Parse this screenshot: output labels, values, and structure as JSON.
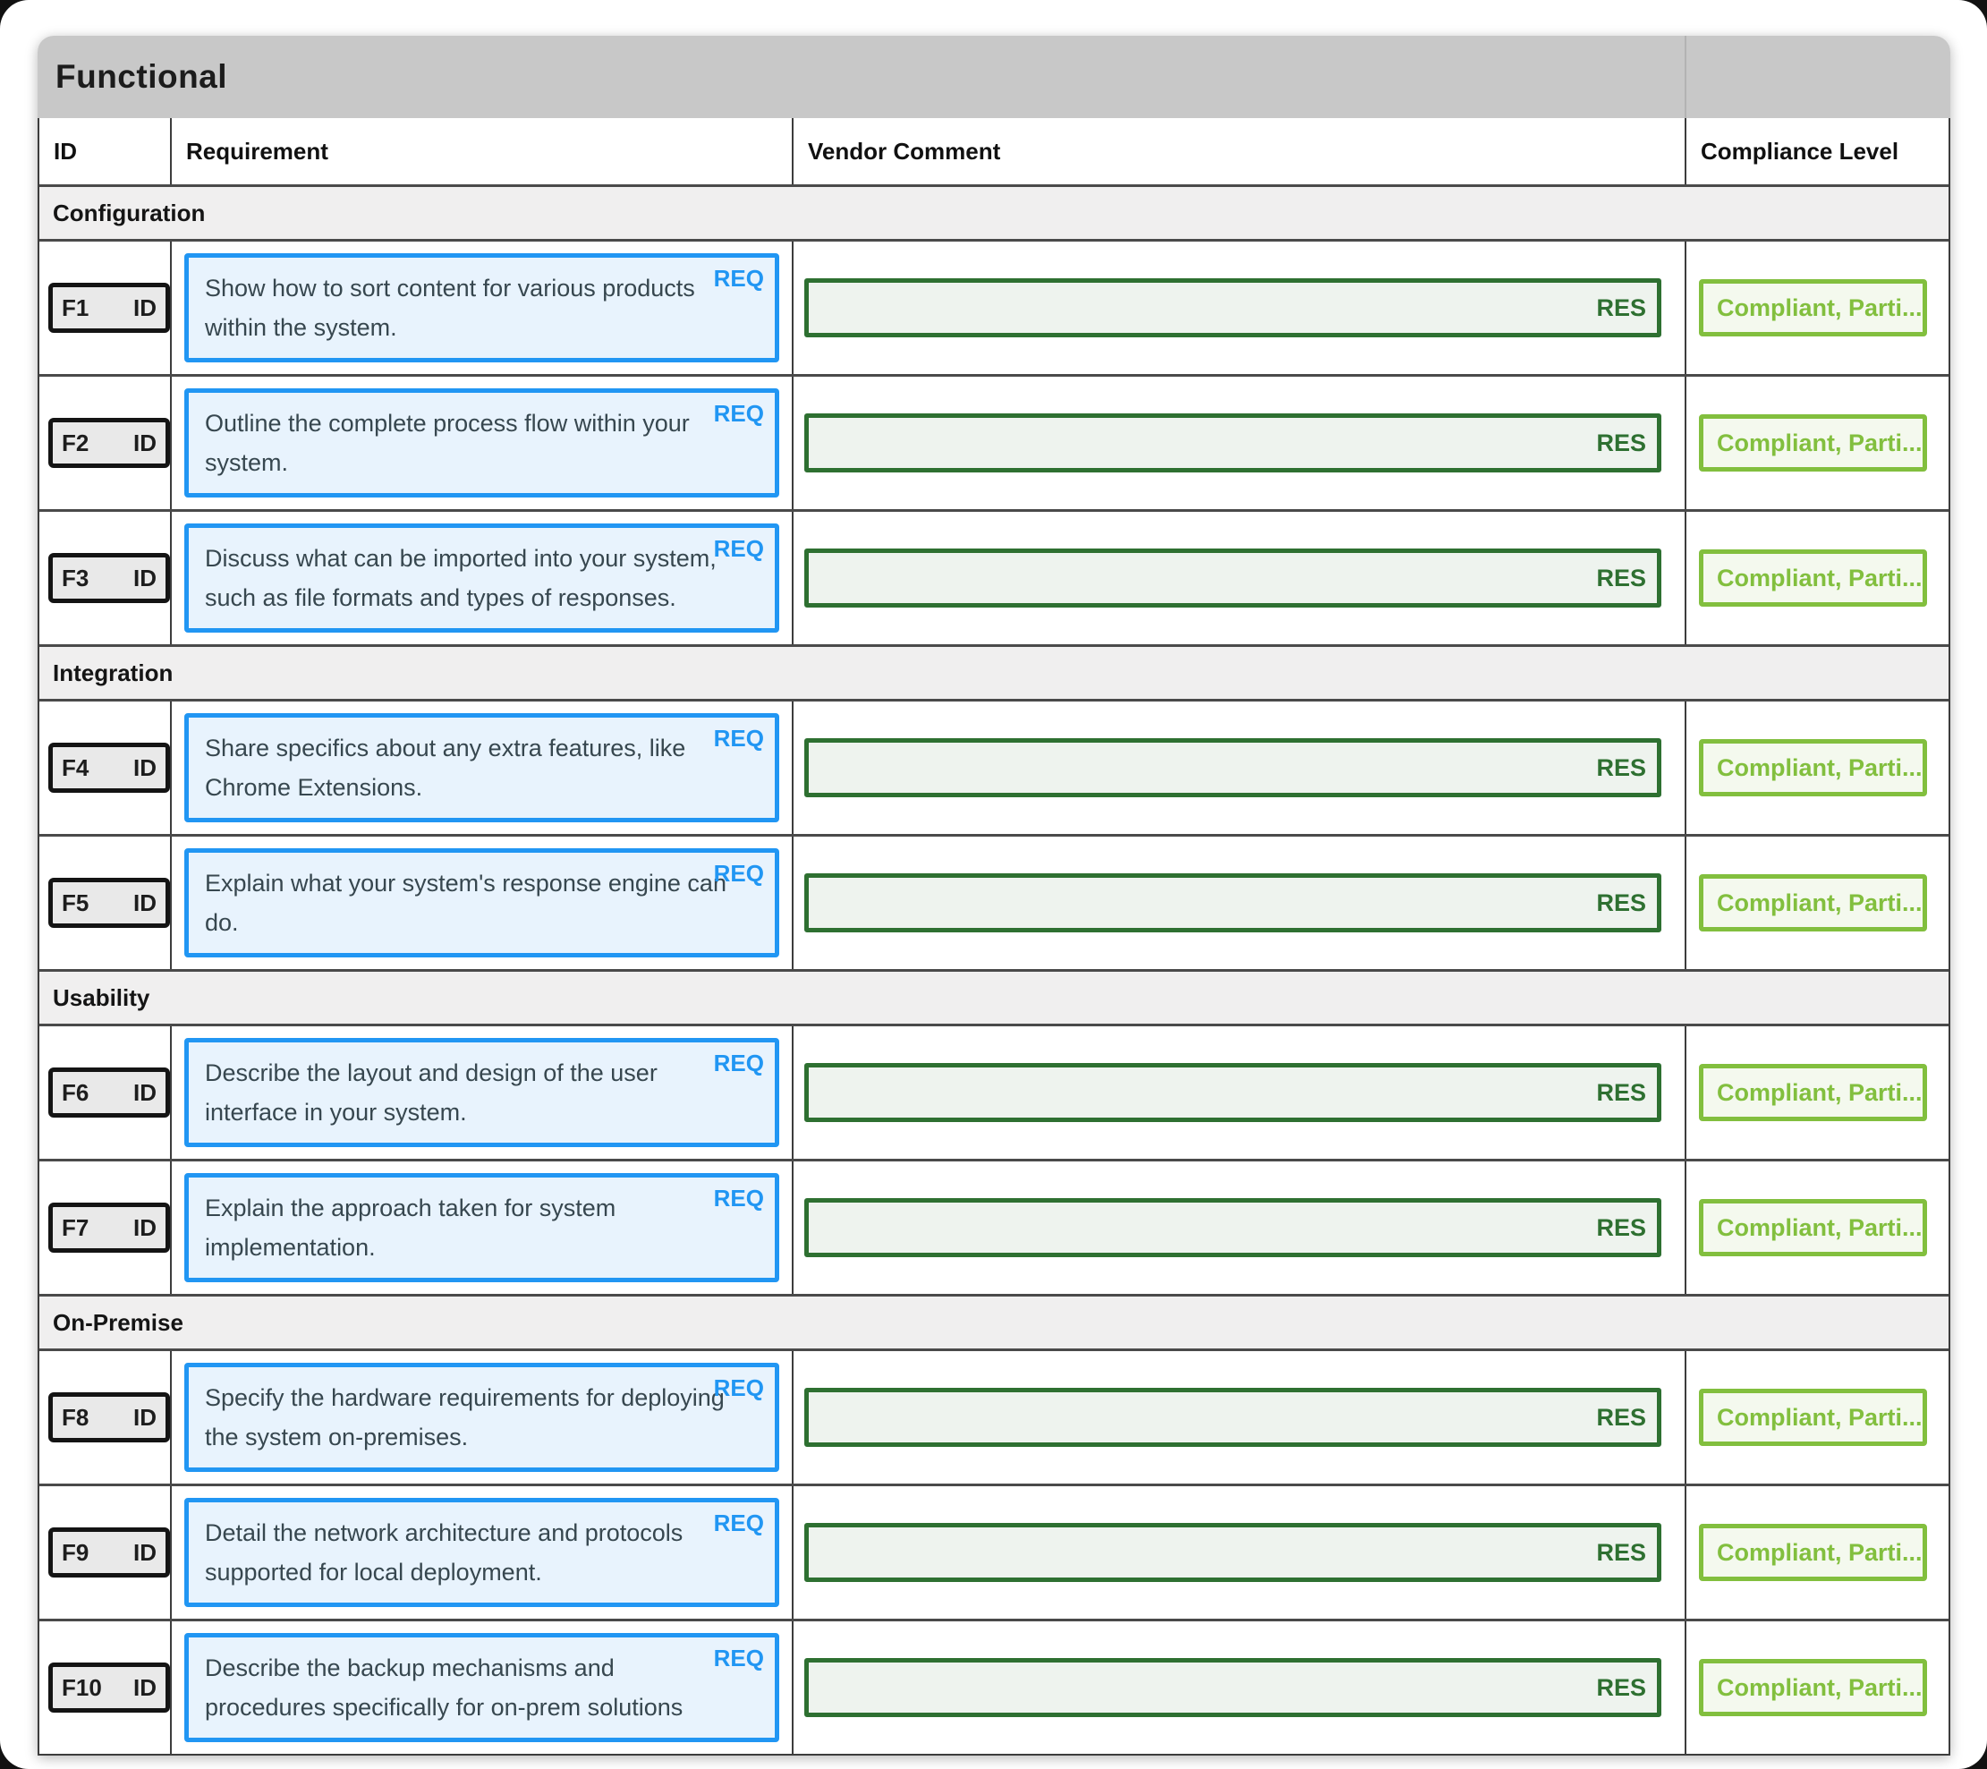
{
  "table": {
    "title": "Functional",
    "columns": [
      "ID",
      "Requirement",
      "Vendor Comment",
      "Compliance Level"
    ],
    "labels": {
      "id": "ID",
      "req": "REQ",
      "res": "RES"
    },
    "compliance_value": "Compliant, Parti...",
    "colors": {
      "accent_blue": "#2196f3",
      "requirement_bg": "#e8f3fd",
      "dark_green": "#2e7031",
      "response_bg": "#eef3ee",
      "light_green": "#82bf3e",
      "compliance_bg": "#f4f9ee",
      "title_bar_gray": "#c8c8c8",
      "section_gray": "#f0efef"
    },
    "sections": [
      {
        "label": "Configuration",
        "rows": [
          {
            "id": "F1",
            "requirement": "Show how to sort content for various products within the system.",
            "vendor_comment": ""
          },
          {
            "id": "F2",
            "requirement": "Outline the complete process flow within your system.",
            "vendor_comment": ""
          },
          {
            "id": "F3",
            "requirement": "Discuss what can be imported into your system, such as file formats and types of responses.",
            "vendor_comment": ""
          }
        ]
      },
      {
        "label": "Integration",
        "rows": [
          {
            "id": "F4",
            "requirement": "Share specifics about any extra features, like Chrome Extensions.",
            "vendor_comment": ""
          },
          {
            "id": "F5",
            "requirement": "Explain what your system's response engine can do.",
            "vendor_comment": ""
          }
        ]
      },
      {
        "label": "Usability",
        "rows": [
          {
            "id": "F6",
            "requirement": "Describe the layout and design of the user interface in your system.",
            "vendor_comment": ""
          },
          {
            "id": "F7",
            "requirement": "Explain the approach taken for system implementation.",
            "vendor_comment": ""
          }
        ]
      },
      {
        "label": "On-Premise",
        "rows": [
          {
            "id": "F8",
            "requirement": "Specify the hardware requirements for deploying the system on-premises.",
            "vendor_comment": ""
          },
          {
            "id": "F9",
            "requirement": "Detail the network architecture and protocols supported for local deployment.",
            "vendor_comment": ""
          },
          {
            "id": "F10",
            "requirement": "Describe the backup mechanisms and procedures specifically for on-prem solutions",
            "vendor_comment": ""
          }
        ]
      }
    ]
  }
}
